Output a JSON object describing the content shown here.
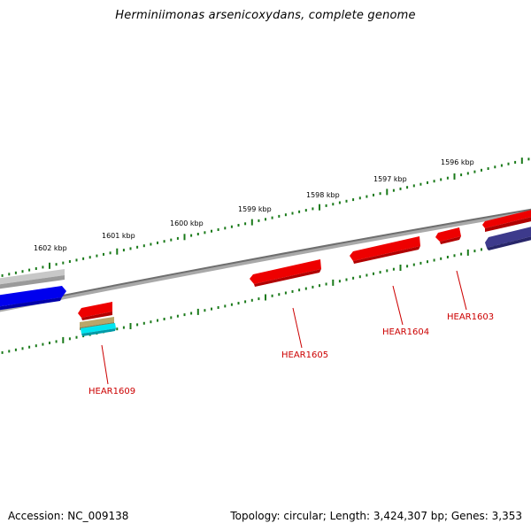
{
  "title": "Herminiimonas arsenicoxydans, complete genome",
  "footer": {
    "accession": "Accession: NC_009138",
    "summary": "Topology: circular; Length: 3,424,307 bp; Genes: 3,353"
  },
  "colors": {
    "backbone": "#808080",
    "ticks": "#1a7a1a",
    "gene_red": "#ee0000",
    "gene_blue": "#0000ee",
    "gene_navy": "#3d3a8c",
    "gene_gray": "#bbbbbb",
    "gene_cyan": "#00e5f0",
    "gene_tan": "#b9a66a",
    "gene_label": "#cc0000"
  },
  "kbp_ticks": [
    "1602 kbp",
    "1601 kbp",
    "1600 kbp",
    "1599 kbp",
    "1598 kbp",
    "1597 kbp",
    "1596 kbp"
  ],
  "gene_labels": [
    "HEAR1609",
    "HEAR1605",
    "HEAR1604",
    "HEAR1603"
  ]
}
